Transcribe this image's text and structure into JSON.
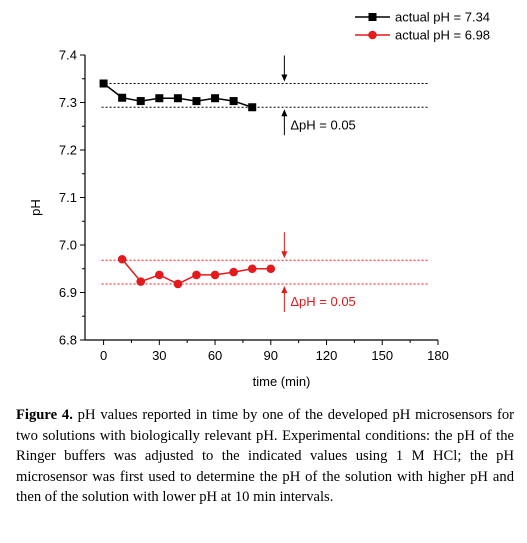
{
  "chart_data": {
    "type": "line",
    "xlabel": "time (min)",
    "ylabel": "pH",
    "xlim": [
      -10,
      180
    ],
    "ylim": [
      6.8,
      7.4
    ],
    "xticks": [
      0,
      30,
      60,
      90,
      120,
      150,
      180
    ],
    "yticks": [
      6.8,
      6.9,
      7.0,
      7.1,
      7.2,
      7.3,
      7.4
    ],
    "xtick_labels": [
      "0",
      "30",
      "60",
      "90",
      "120",
      "150",
      "180"
    ],
    "ytick_labels": [
      "6.8",
      "6.9",
      "7.0",
      "7.1",
      "7.2",
      "7.3",
      "7.4"
    ],
    "legend_position": "top-right",
    "series": [
      {
        "name": "actual pH = 7.34",
        "color": "#000000",
        "marker": "square",
        "x": [
          0,
          10,
          20,
          30,
          40,
          50,
          60,
          70,
          80,
          90,
          100
        ],
        "y": [
          7.34,
          7.31,
          7.303,
          7.309,
          7.309,
          7.303,
          7.309,
          7.303,
          7.29,
          null,
          null
        ]
      },
      {
        "name": "actual pH = 6.98",
        "color": "#e41a1c",
        "marker": "circle",
        "x": [
          10,
          20,
          30,
          40,
          50,
          60,
          70,
          80,
          90,
          100
        ],
        "y": [
          6.97,
          6.923,
          6.937,
          6.918,
          6.937,
          6.937,
          6.943,
          6.95,
          6.95,
          null
        ]
      }
    ],
    "reference_lines": [
      {
        "y": 7.34,
        "color": "#000000",
        "style": "dotted"
      },
      {
        "y": 7.29,
        "color": "#000000",
        "style": "dotted"
      },
      {
        "y": 6.968,
        "color": "#e41a1c",
        "style": "dotted"
      },
      {
        "y": 6.918,
        "color": "#e41a1c",
        "style": "dotted"
      }
    ],
    "annotations": [
      {
        "text": "ΔpH = 0.05",
        "color": "#000000",
        "x": 100,
        "y_from": 7.29,
        "y_to": 7.34
      },
      {
        "text": "ΔpH = 0.05",
        "color": "#e41a1c",
        "x": 100,
        "y_from": 6.918,
        "y_to": 6.968
      }
    ]
  },
  "caption": {
    "label": "Figure 4.",
    "text": " pH values reported in time by one of the developed pH microsensors for two solutions with biologically relevant pH. Experimental conditions: the pH of the Ringer buffers was adjusted to the indicated values using 1 M HCl; the pH microsensor was first used to determine the pH of the solution with higher pH and then of the solution with lower pH at 10 min intervals."
  }
}
